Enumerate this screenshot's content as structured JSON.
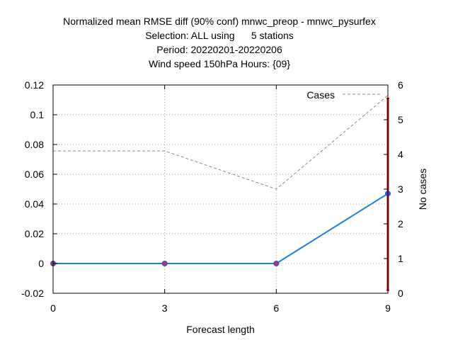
{
  "chart_data": {
    "type": "line",
    "title_lines": [
      "Normalized mean RMSE diff (90% conf) mnwc_preop - mnwc_pysurfex",
      "Selection: ALL using      5 stations",
      "Period: 20220201-20220206",
      "Wind speed 150hPa   Hours: {09}"
    ],
    "xlabel": "Forecast length",
    "ylabel": "",
    "y2label": "No cases",
    "x": [
      0,
      3,
      6,
      9
    ],
    "xlim": [
      0,
      9
    ],
    "ylim": [
      -0.02,
      0.12
    ],
    "y2lim": [
      0,
      6
    ],
    "xticks": [
      "0",
      "3",
      "6",
      "9"
    ],
    "yticks": [
      "-0.02",
      "0",
      "0.02",
      "0.04",
      "0.06",
      "0.08",
      "0.1",
      "0.12"
    ],
    "y2ticks": [
      "0",
      "1",
      "2",
      "3",
      "4",
      "5",
      "6"
    ],
    "grid": true,
    "series": [
      {
        "values": [
          0,
          0,
          0,
          0.047
        ],
        "color": "#1f7fe0",
        "marker_color": "#3d4fc7",
        "axis": "y"
      },
      {
        "name": "Cases",
        "values": [
          4.1,
          4.1,
          3.0,
          5.7
        ],
        "color": "#888888",
        "style": "dashed",
        "axis": "y2"
      }
    ],
    "error_bars": [
      {
        "x": 9,
        "low": -0.018,
        "high": 0.111,
        "color": "#cc1111"
      }
    ],
    "legend_placement": "top-right"
  }
}
